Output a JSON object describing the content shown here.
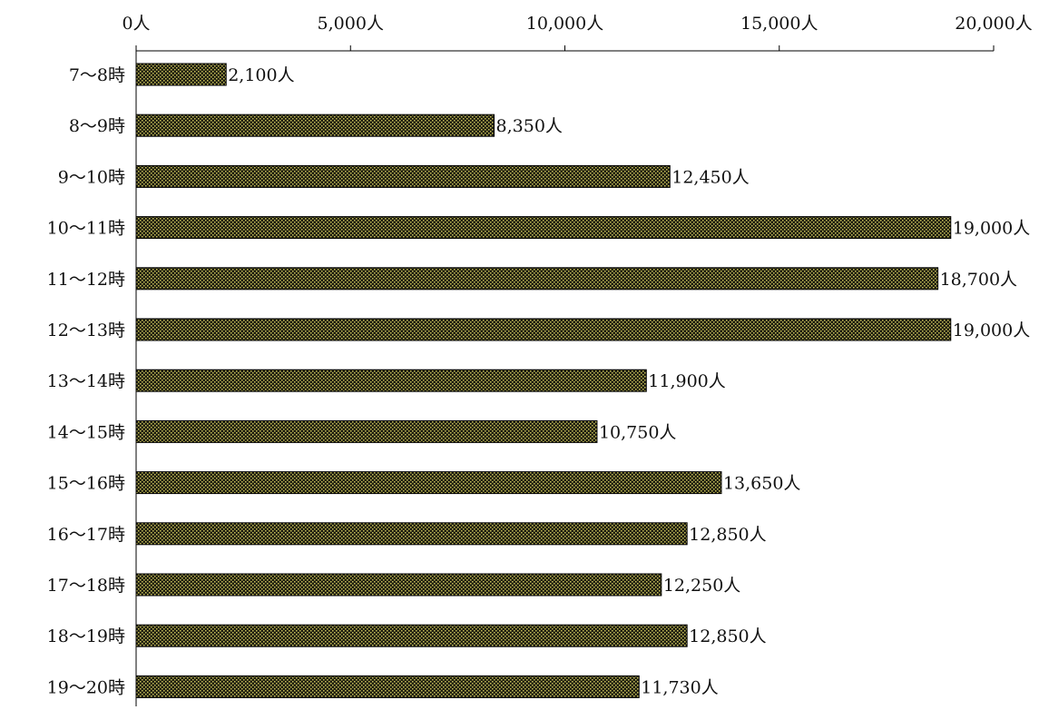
{
  "chart_data": {
    "type": "bar",
    "orientation": "horizontal",
    "title": "",
    "xlabel": "",
    "ylabel": "",
    "unit_suffix": "人",
    "xlim": [
      0,
      20000
    ],
    "x_ticks": [
      0,
      5000,
      10000,
      15000,
      20000
    ],
    "x_tick_labels": [
      "0人",
      "5,000人",
      "10,000人",
      "15,000人",
      "20,000人"
    ],
    "x_axis_position": "top",
    "grid": false,
    "legend": "none",
    "categories": [
      "7〜8時",
      "8〜9時",
      "9〜10時",
      "10〜11時",
      "11〜12時",
      "12〜13時",
      "13〜14時",
      "14〜15時",
      "15〜16時",
      "16〜17時",
      "17〜18時",
      "18〜19時",
      "19〜20時"
    ],
    "values": [
      2100,
      8350,
      12450,
      19000,
      18700,
      19000,
      11900,
      10750,
      13650,
      12850,
      12250,
      12850,
      11730
    ],
    "data_labels": [
      "2,100人",
      "8,350人",
      "12,450人",
      "19,000人",
      "18,700人",
      "19,000人",
      "11,900人",
      "10,750人",
      "13,650人",
      "12,850人",
      "12,250人",
      "12,850人",
      "11,730人"
    ],
    "colors": {
      "bar_base": "#1e1e10",
      "bar_dots": "#c8c05a",
      "bar_outline": "#000000",
      "axis": "#000000",
      "text": "#111111"
    }
  }
}
